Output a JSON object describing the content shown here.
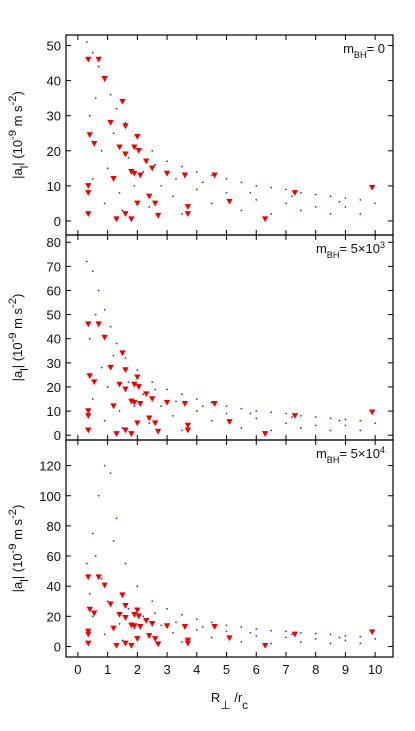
{
  "chart_data": [
    {
      "type": "scatter",
      "annotation": [
        "m",
        "BH",
        "= 0"
      ],
      "ylabel": [
        "|a",
        "l",
        "| (10",
        "-9",
        " m s",
        "-2",
        ")"
      ],
      "xlim": [
        -0.4,
        10.6
      ],
      "ylim": [
        -4,
        53
      ],
      "xticks": [
        0,
        1,
        2,
        3,
        4,
        5,
        6,
        7,
        8,
        9,
        10
      ],
      "yticks": [
        0,
        10,
        20,
        30,
        40,
        50
      ],
      "series": [
        {
          "color": "#3030d0",
          "marker": "dot",
          "x": [
            0.3,
            0.5,
            0.7,
            0.9,
            1.1,
            1.3,
            1.6,
            2.0,
            2.5,
            3.0,
            3.5,
            4.0,
            4.5,
            5.0,
            5.5,
            6.0,
            6.5,
            7.0,
            7.5,
            8.0,
            8.5,
            9.0,
            9.5,
            0.4,
            0.6,
            0.8,
            1.0,
            1.2,
            1.4,
            1.7,
            1.9,
            2.2,
            2.4,
            2.8,
            3.2,
            3.5,
            4.0,
            4.5,
            5.0,
            5.5,
            6.0,
            6.5,
            7.0,
            7.5,
            8.0,
            8.5,
            9.0,
            9.5,
            0.5,
            0.9,
            1.5,
            2.6,
            3.3,
            4.2,
            5.8,
            7.2,
            8.8,
            10.0
          ],
          "y": [
            51,
            48,
            44,
            40,
            36,
            32,
            28,
            24,
            20,
            17,
            15.5,
            14,
            13,
            12,
            11,
            10,
            9.5,
            9,
            8,
            7.5,
            7,
            6.5,
            6,
            30,
            35,
            20,
            15,
            25,
            8,
            18,
            10,
            14,
            4,
            10,
            7,
            2,
            9,
            5,
            8,
            3,
            6,
            2,
            5,
            3,
            4,
            2,
            4,
            2,
            12,
            5,
            3,
            16,
            12,
            11,
            8,
            7,
            5.5,
            5
          ]
        },
        {
          "color": "#ee0000",
          "marker": "triangle-down",
          "x": [
            0.35,
            0.7,
            0.9,
            1.5,
            1.1,
            1.6,
            0.4,
            0.55,
            2.0,
            1.4,
            1.9,
            2.05,
            1.6,
            1.8,
            1.9,
            1.2,
            2.3,
            2.5,
            3.0,
            3.6,
            4.6,
            7.3,
            9.9,
            0.35,
            0.35,
            0.35,
            1.6,
            1.8,
            1.3,
            2.0,
            2.4,
            2.6,
            2.7,
            3.7,
            3.7,
            5.1,
            6.3,
            2.1
          ],
          "y": [
            46,
            46,
            40.5,
            34,
            28,
            27,
            24.5,
            22,
            24,
            21,
            21,
            20,
            19,
            14,
            13.5,
            12,
            17,
            15,
            13.5,
            13,
            13,
            8,
            9.5,
            10,
            8,
            2,
            2,
            0.5,
            0.5,
            5,
            7,
            5,
            1.5,
            4,
            2,
            5.5,
            0.5,
            13
          ]
        }
      ]
    },
    {
      "type": "scatter",
      "annotation": [
        "m",
        "BH",
        "= 5×10",
        "3"
      ],
      "ylabel": [
        "|a",
        "l",
        "| (10",
        "-9",
        " m s",
        "-2",
        ")"
      ],
      "xlim": [
        -0.4,
        10.6
      ],
      "ylim": [
        -2,
        83
      ],
      "xticks": [
        0,
        1,
        2,
        3,
        4,
        5,
        6,
        7,
        8,
        9,
        10
      ],
      "yticks": [
        0,
        10,
        20,
        30,
        40,
        50,
        60,
        70,
        80
      ],
      "series": [
        {
          "color": "#3030d0",
          "marker": "dot",
          "x": [
            0.3,
            0.5,
            0.7,
            0.9,
            1.1,
            1.3,
            1.6,
            2.0,
            2.5,
            3.0,
            3.5,
            4.0,
            4.5,
            5.0,
            5.5,
            6.0,
            6.5,
            7.0,
            7.5,
            8.0,
            8.5,
            9.0,
            9.5,
            0.4,
            0.6,
            0.8,
            1.0,
            1.2,
            1.4,
            1.7,
            1.9,
            2.2,
            2.4,
            2.8,
            3.2,
            3.5,
            4.0,
            4.5,
            5.0,
            5.5,
            6.0,
            6.5,
            7.0,
            7.5,
            8.0,
            8.5,
            9.0,
            9.5,
            0.5,
            0.9,
            1.5,
            2.6,
            3.3,
            4.2,
            5.8,
            7.2,
            8.8,
            10.0
          ],
          "y": [
            72,
            68,
            60,
            52,
            45,
            38,
            32,
            27,
            22,
            19,
            17,
            15,
            13.5,
            12,
            11,
            10,
            9.5,
            9,
            8,
            7.5,
            7,
            6.5,
            6,
            40,
            50,
            28,
            20,
            33,
            10,
            22,
            12,
            17,
            5,
            12,
            8,
            2,
            10,
            6,
            9,
            3,
            7,
            2,
            5,
            3,
            4,
            2,
            4,
            2,
            15,
            6,
            3,
            19,
            14,
            12,
            9,
            7.5,
            6,
            5
          ]
        },
        {
          "color": "#ee0000",
          "marker": "triangle-down",
          "x": [
            0.35,
            0.7,
            0.9,
            1.5,
            1.1,
            1.6,
            0.4,
            0.55,
            2.0,
            1.4,
            1.9,
            2.05,
            1.6,
            1.8,
            1.9,
            1.2,
            2.3,
            2.5,
            3.0,
            3.6,
            4.6,
            7.3,
            9.9,
            0.35,
            0.35,
            0.35,
            1.6,
            1.8,
            1.3,
            2.0,
            2.4,
            2.6,
            2.7,
            3.7,
            3.7,
            5.1,
            6.3,
            2.1
          ],
          "y": [
            46,
            46,
            40.5,
            34,
            28,
            27,
            24.5,
            22,
            24,
            21,
            21,
            20,
            19,
            14,
            13.5,
            12,
            17,
            15,
            13.5,
            13,
            13,
            8,
            9.5,
            10,
            8,
            2,
            2,
            0.5,
            0.5,
            5,
            7,
            5,
            1.5,
            4,
            2,
            5.5,
            0.5,
            13
          ]
        }
      ]
    },
    {
      "type": "scatter",
      "annotation": [
        "m",
        "BH",
        "= 5×10",
        "4"
      ],
      "ylabel": [
        "|a",
        "l",
        "| (10",
        "-9",
        " m s",
        "-2",
        ")"
      ],
      "xlabel": [
        "R",
        "⊥",
        " /r",
        "c"
      ],
      "xlim": [
        -0.4,
        10.6
      ],
      "ylim": [
        -7,
        137
      ],
      "xticks": [
        0,
        1,
        2,
        3,
        4,
        5,
        6,
        7,
        8,
        9,
        10
      ],
      "yticks": [
        0,
        20,
        40,
        60,
        80,
        100,
        120
      ],
      "series": [
        {
          "color": "#3030d0",
          "marker": "dot",
          "x": [
            0.3,
            0.5,
            0.7,
            0.9,
            1.1,
            1.3,
            1.6,
            2.0,
            2.5,
            3.0,
            3.5,
            4.0,
            4.5,
            5.0,
            5.5,
            6.0,
            6.5,
            7.0,
            7.5,
            8.0,
            8.5,
            9.0,
            9.5,
            0.4,
            0.6,
            0.8,
            1.0,
            1.2,
            1.4,
            1.7,
            1.9,
            2.2,
            2.4,
            2.8,
            3.2,
            3.5,
            4.0,
            4.5,
            5.0,
            5.5,
            6.0,
            6.5,
            7.0,
            7.5,
            8.0,
            8.5,
            9.0,
            9.5,
            0.5,
            0.9,
            1.5,
            2.6,
            3.3,
            4.2,
            5.8,
            7.2,
            8.8,
            10.0
          ],
          "y": [
            55,
            75,
            100,
            120,
            115,
            85,
            55,
            40,
            30,
            25,
            21,
            18,
            16,
            14,
            13,
            11.5,
            10.5,
            10,
            9,
            8.5,
            8,
            7,
            6.5,
            35,
            60,
            45,
            30,
            70,
            15,
            25,
            12,
            20,
            6,
            14,
            9,
            3,
            11,
            6,
            10,
            3,
            7,
            2,
            6,
            3,
            5,
            2,
            4,
            2,
            20,
            8,
            4,
            22,
            16,
            13,
            9,
            8,
            6,
            5
          ]
        },
        {
          "color": "#ee0000",
          "marker": "triangle-down",
          "x": [
            0.35,
            0.7,
            0.9,
            1.5,
            1.1,
            1.6,
            0.4,
            0.55,
            2.0,
            1.4,
            1.9,
            2.05,
            1.6,
            1.8,
            1.9,
            1.2,
            2.3,
            2.5,
            3.0,
            3.6,
            4.6,
            7.3,
            9.9,
            0.35,
            0.35,
            0.35,
            1.6,
            1.8,
            1.3,
            2.0,
            2.4,
            2.6,
            2.7,
            3.7,
            3.7,
            5.1,
            6.3,
            2.1
          ],
          "y": [
            46,
            46,
            40.5,
            34,
            28,
            27,
            24.5,
            22,
            24,
            21,
            21,
            20,
            19,
            14,
            13.5,
            12,
            17,
            15,
            13.5,
            13,
            13,
            8,
            9.5,
            10,
            8,
            2,
            2,
            0.5,
            0.5,
            5,
            7,
            5,
            1.5,
            4,
            2,
            5.5,
            0.5,
            13
          ]
        }
      ]
    }
  ]
}
